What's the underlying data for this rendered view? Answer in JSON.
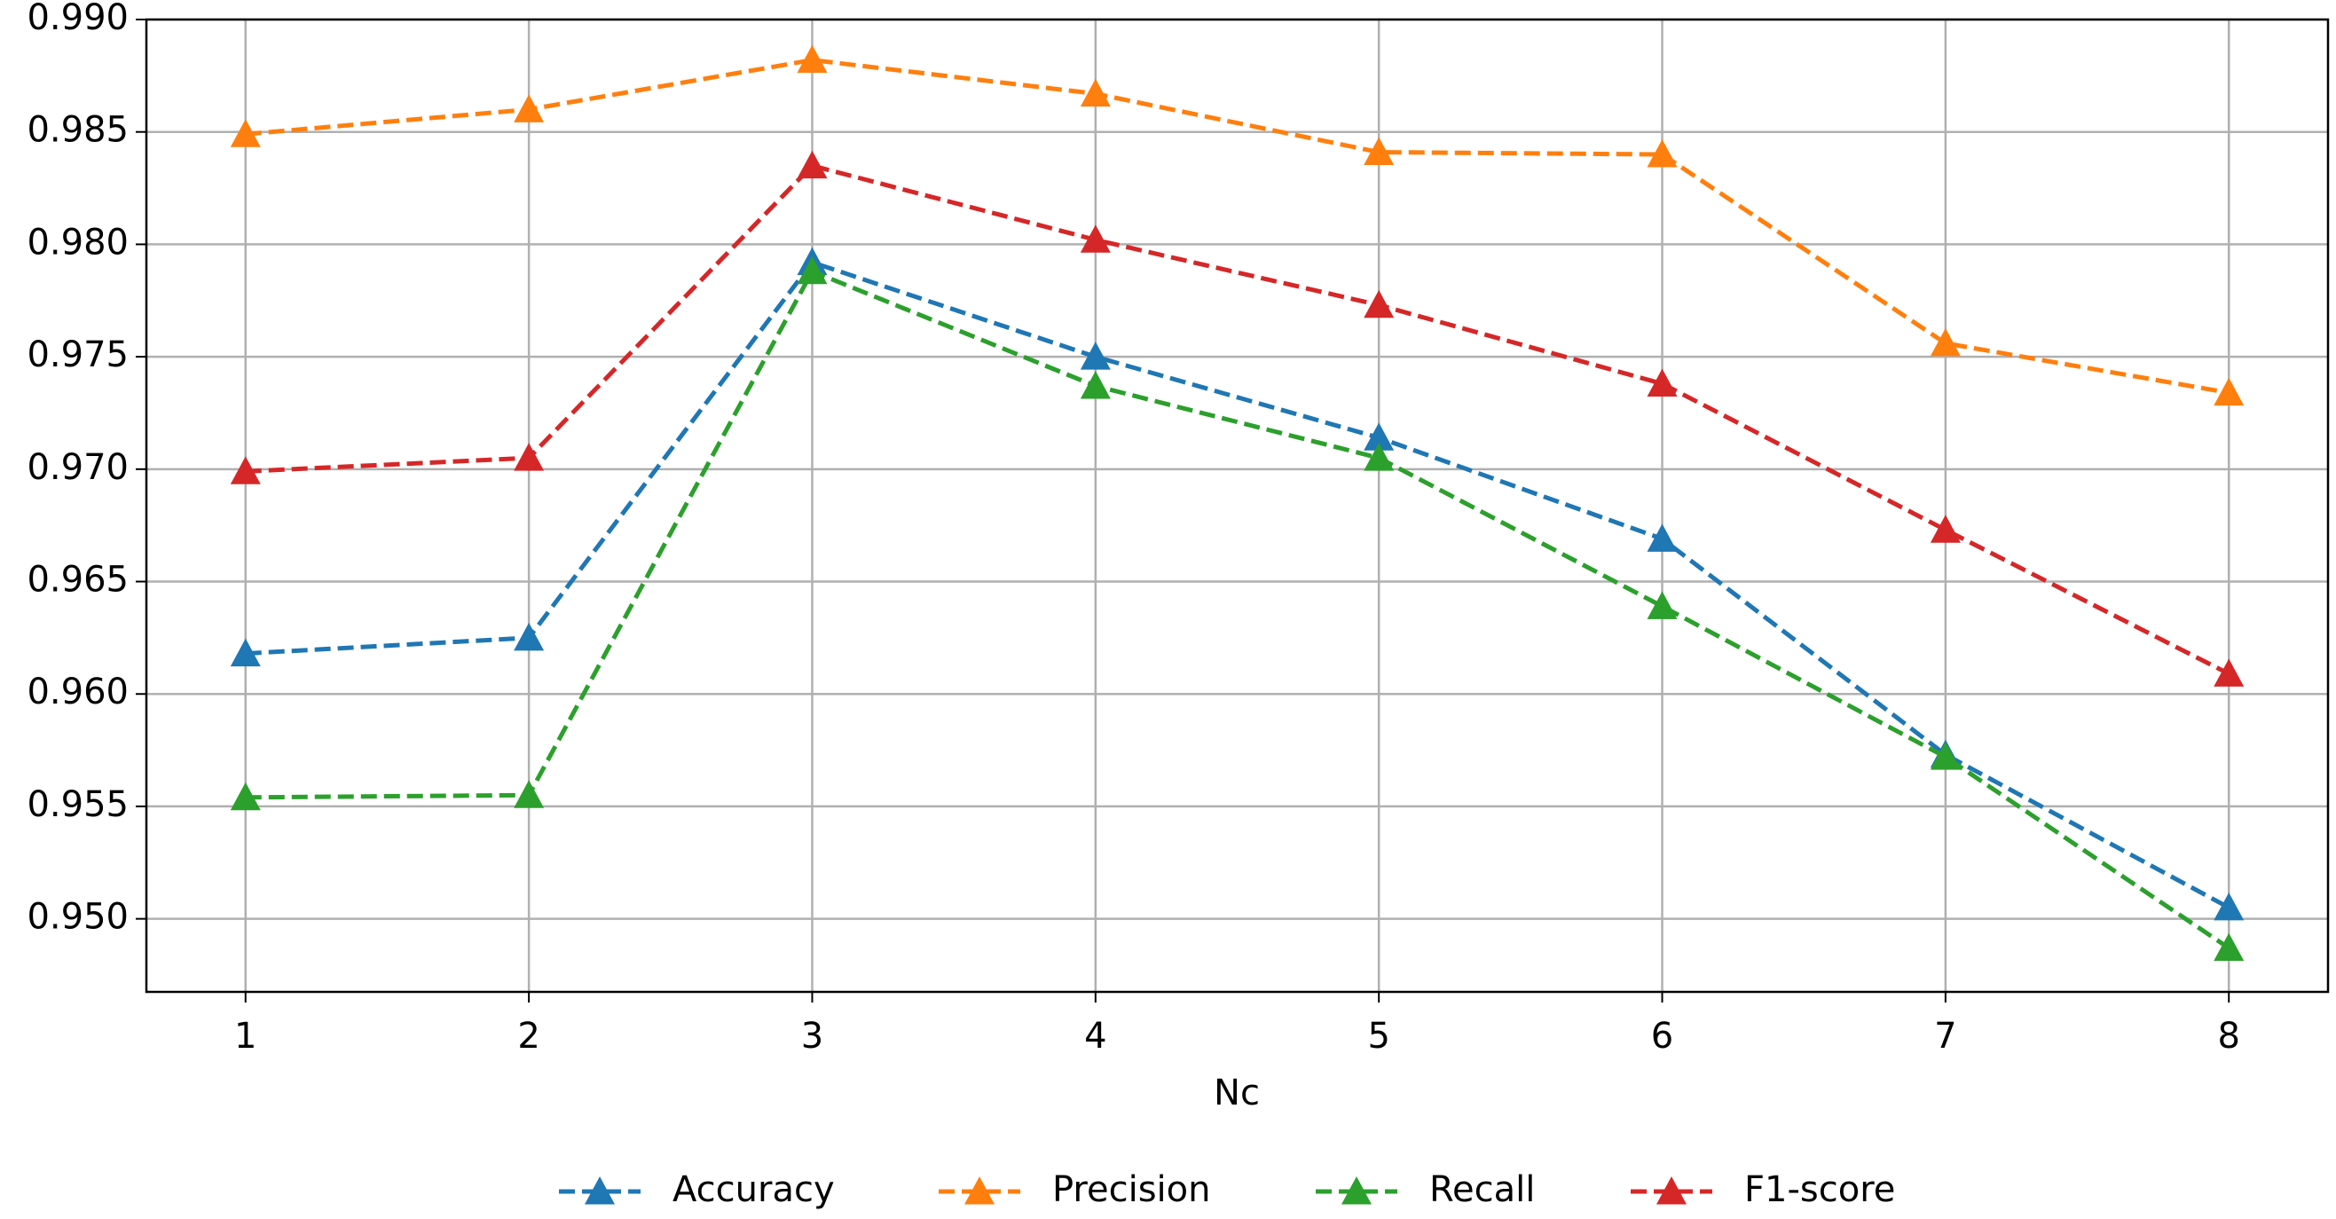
{
  "chart_data": {
    "type": "line",
    "x_label": "Nc",
    "x": [
      1,
      2,
      3,
      4,
      5,
      6,
      7,
      8
    ],
    "series": [
      {
        "name": "Accuracy",
        "color": "#1f77b4",
        "values": [
          0.9618,
          0.9625,
          0.9792,
          0.975,
          0.9714,
          0.9669,
          0.9573,
          0.9505
        ]
      },
      {
        "name": "Precision",
        "color": "#ff7f0e",
        "values": [
          0.9849,
          0.986,
          0.9882,
          0.9867,
          0.9841,
          0.984,
          0.9756,
          0.9734
        ]
      },
      {
        "name": "Recall",
        "color": "#2ca02c",
        "values": [
          0.9554,
          0.9555,
          0.9788,
          0.9737,
          0.9705,
          0.9639,
          0.9572,
          0.9487
        ]
      },
      {
        "name": "F1-score",
        "color": "#d62728",
        "values": [
          0.9699,
          0.9705,
          0.9835,
          0.9802,
          0.9773,
          0.9738,
          0.9673,
          0.9609
        ]
      }
    ],
    "xlim": [
      0.65,
      8.35
    ],
    "ylim": [
      0.94675,
      0.99
    ],
    "xticks": [
      1,
      2,
      3,
      4,
      5,
      6,
      7,
      8
    ],
    "yticks": [
      {
        "value": 0.95,
        "label": "0.950"
      },
      {
        "value": 0.955,
        "label": "0.955"
      },
      {
        "value": 0.96,
        "label": "0.960"
      },
      {
        "value": 0.965,
        "label": "0.965"
      },
      {
        "value": 0.97,
        "label": "0.970"
      },
      {
        "value": 0.975,
        "label": "0.975"
      },
      {
        "value": 0.98,
        "label": "0.980"
      },
      {
        "value": 0.985,
        "label": "0.985"
      },
      {
        "value": 0.99,
        "label": "0.990"
      }
    ],
    "grid": true,
    "legend": "bottom",
    "dashed": true,
    "marker": "triangle"
  }
}
